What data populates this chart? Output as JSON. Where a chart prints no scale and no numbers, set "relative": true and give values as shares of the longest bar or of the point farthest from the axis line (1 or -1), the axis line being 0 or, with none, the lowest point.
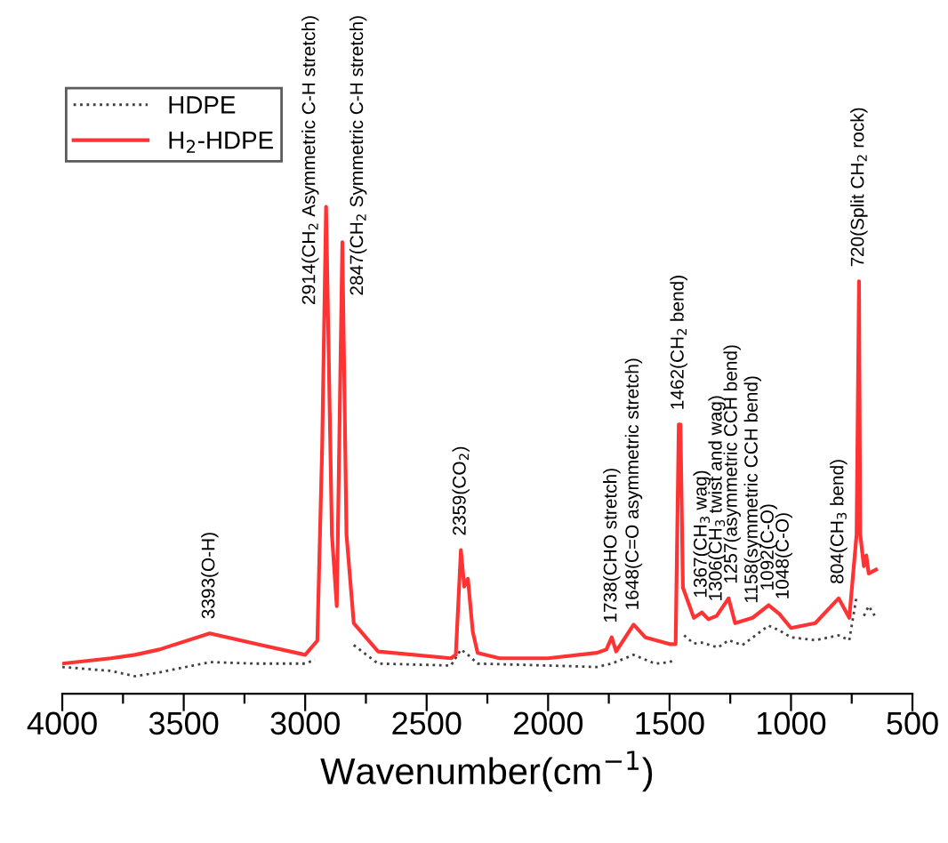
{
  "chart_data": {
    "type": "line",
    "relative": true,
    "xlabel": "Wavenumber(cm$^{−1}$)",
    "xlim": [
      4000,
      500
    ],
    "xticks": [
      4000,
      {
        "value": 3750,
        "label": null
      },
      3500,
      {
        "value": 3250,
        "label": null
      },
      3000,
      {
        "value": 2750,
        "label": null
      },
      2500,
      {
        "value": 2250,
        "label": null
      },
      2000,
      {
        "value": 1750,
        "label": null
      },
      1500,
      {
        "value": 1250,
        "label": null
      },
      1000,
      {
        "value": 750,
        "label": null
      },
      500
    ],
    "tick_labels": "x",
    "grid": false,
    "legend": "top left",
    "marker": "none",
    "series": [
      {
        "name": "HDPE",
        "color": "#404040",
        "line_style": "dotted",
        "x": [
          4000,
          3800,
          3700,
          3600,
          3393,
          3200,
          3000,
          2960,
          2930,
          2914,
          2890,
          2860,
          2847,
          2830,
          2800,
          2700,
          2400,
          2359,
          2330,
          2290,
          2000,
          1800,
          1738,
          1648,
          1560,
          1500,
          1480,
          1465,
          1455,
          1440,
          1400,
          1367,
          1300,
          1257,
          1200,
          1092,
          1048,
          1000,
          900,
          804,
          760,
          730,
          720,
          700,
          680,
          650
        ],
        "values": [
          0.055,
          0.047,
          0.036,
          0.044,
          0.065,
          0.062,
          0.062,
          0.07,
          null,
          null,
          null,
          null,
          null,
          null,
          0.1,
          0.062,
          0.058,
          0.091,
          0.08,
          0.062,
          0.058,
          0.055,
          0.062,
          0.08,
          0.062,
          0.065,
          0.07,
          null,
          null,
          0.12,
          0.103,
          0.105,
          0.095,
          0.11,
          0.1,
          0.14,
          0.13,
          0.116,
          0.11,
          0.12,
          0.11,
          0.2,
          null,
          0.16,
          0.18,
          0.156
        ]
      },
      {
        "name": "H$_{2}$-HDPE",
        "color": "#ff3333",
        "line_style": "solid",
        "x": [
          4000,
          3800,
          3700,
          3600,
          3393,
          3200,
          3000,
          2950,
          2930,
          2914,
          2890,
          2870,
          2847,
          2830,
          2800,
          2700,
          2400,
          2380,
          2359,
          2345,
          2330,
          2310,
          2290,
          2200,
          2000,
          1800,
          1760,
          1738,
          1720,
          1648,
          1600,
          1500,
          1475,
          1462,
          1455,
          1445,
          1400,
          1367,
          1340,
          1306,
          1257,
          1230,
          1158,
          1092,
          1048,
          1000,
          900,
          804,
          760,
          730,
          720,
          715,
          700,
          690,
          680,
          650
        ],
        "values": [
          0.062,
          0.073,
          0.08,
          0.091,
          0.124,
          0.102,
          0.08,
          0.109,
          0.51,
          1.0,
          0.327,
          0.18,
          0.927,
          0.327,
          0.145,
          0.087,
          0.073,
          0.08,
          0.295,
          0.22,
          0.236,
          0.127,
          0.084,
          0.073,
          0.073,
          0.084,
          0.091,
          0.116,
          0.087,
          0.142,
          0.116,
          0.102,
          0.102,
          0.553,
          0.553,
          0.218,
          0.156,
          0.167,
          0.153,
          0.16,
          0.196,
          0.145,
          0.156,
          0.182,
          0.164,
          0.135,
          0.145,
          0.196,
          0.156,
          0.327,
          0.847,
          0.327,
          0.262,
          0.284,
          0.247,
          0.255
        ]
      }
    ],
    "annotations": [
      {
        "text": "3393(O-H)",
        "x": 3393,
        "y": 0.124
      },
      {
        "text": "2914(CH$_{2}$ Asymmetric C-H stretch)",
        "x": 2914,
        "y": 1.0
      },
      {
        "text": "2847(CH$_{2}$ Symmetric C-H stretch)",
        "x": 2847,
        "y": 0.927
      },
      {
        "text": "2359(CO$_{2}$)",
        "x": 2359,
        "y": 0.295
      },
      {
        "text": "1738(CHO stretch)",
        "x": 1738,
        "y": 0.116
      },
      {
        "text": "1648(C=O asymmetric stretch)",
        "x": 1648,
        "y": 0.142
      },
      {
        "text": "1462(CH$_{2}$ bend)",
        "x": 1462,
        "y": 0.553
      },
      {
        "text": "1367(CH$_{3}$ wag)",
        "x": 1367,
        "y": 0.167
      },
      {
        "text": "1306(CH$_{3}$ twist and wag)",
        "x": 1306,
        "y": 0.16
      },
      {
        "text": "1257(asymmetric CCH bend)",
        "x": 1257,
        "y": 0.196
      },
      {
        "text": "1158(symmetric CCH bend)",
        "x": 1158,
        "y": 0.156
      },
      {
        "text": "1092(C-O)",
        "x": 1092,
        "y": 0.182
      },
      {
        "text": "1048(C-O)",
        "x": 1048,
        "y": 0.164
      },
      {
        "text": "804(CH$_{3}$ bend)",
        "x": 804,
        "y": 0.196
      },
      {
        "text": "720(Split CH$_{2}$ rock)",
        "x": 720,
        "y": 0.847
      }
    ]
  }
}
